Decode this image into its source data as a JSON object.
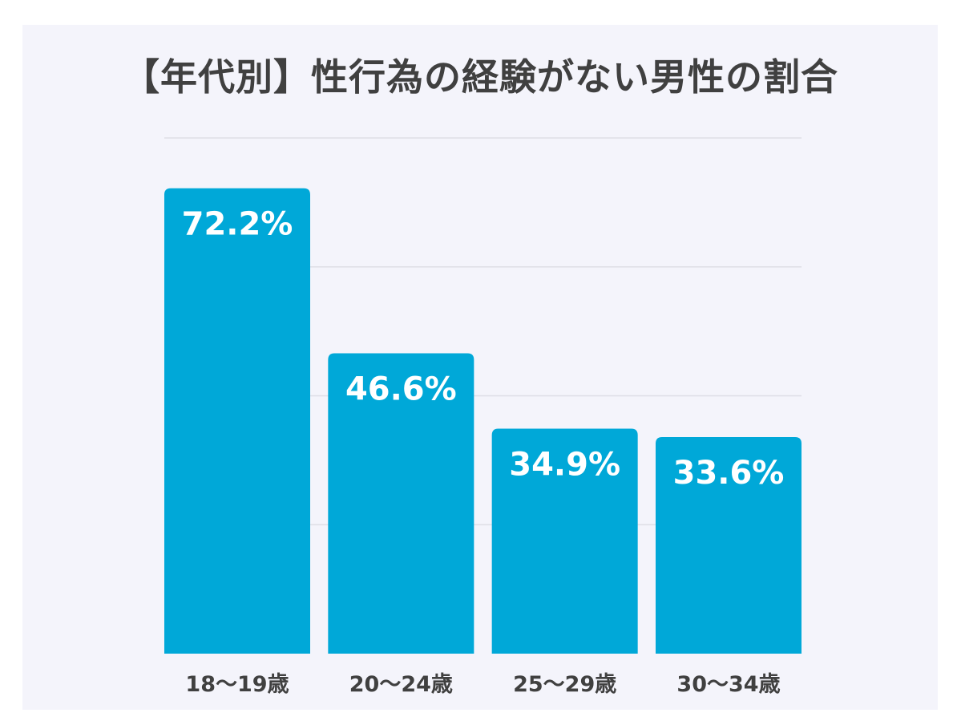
{
  "chart_data": {
    "type": "bar",
    "title": "【年代別】性行為の経験がない男性の割合",
    "categories": [
      "18〜19歳",
      "20〜24歳",
      "25〜29歳",
      "30〜34歳"
    ],
    "values": [
      72.2,
      46.6,
      34.9,
      33.6
    ],
    "value_labels": [
      "72.2%",
      "46.6%",
      "34.9%",
      "33.6%"
    ],
    "unit": "%",
    "ylim": [
      0,
      80
    ],
    "grid": true,
    "legend": "none",
    "xlabel": "",
    "ylabel": "",
    "bar_color": "#00a8d8",
    "background_color": "#f4f4fb",
    "grid_color": "#dedee6",
    "text_color": "#404040"
  }
}
